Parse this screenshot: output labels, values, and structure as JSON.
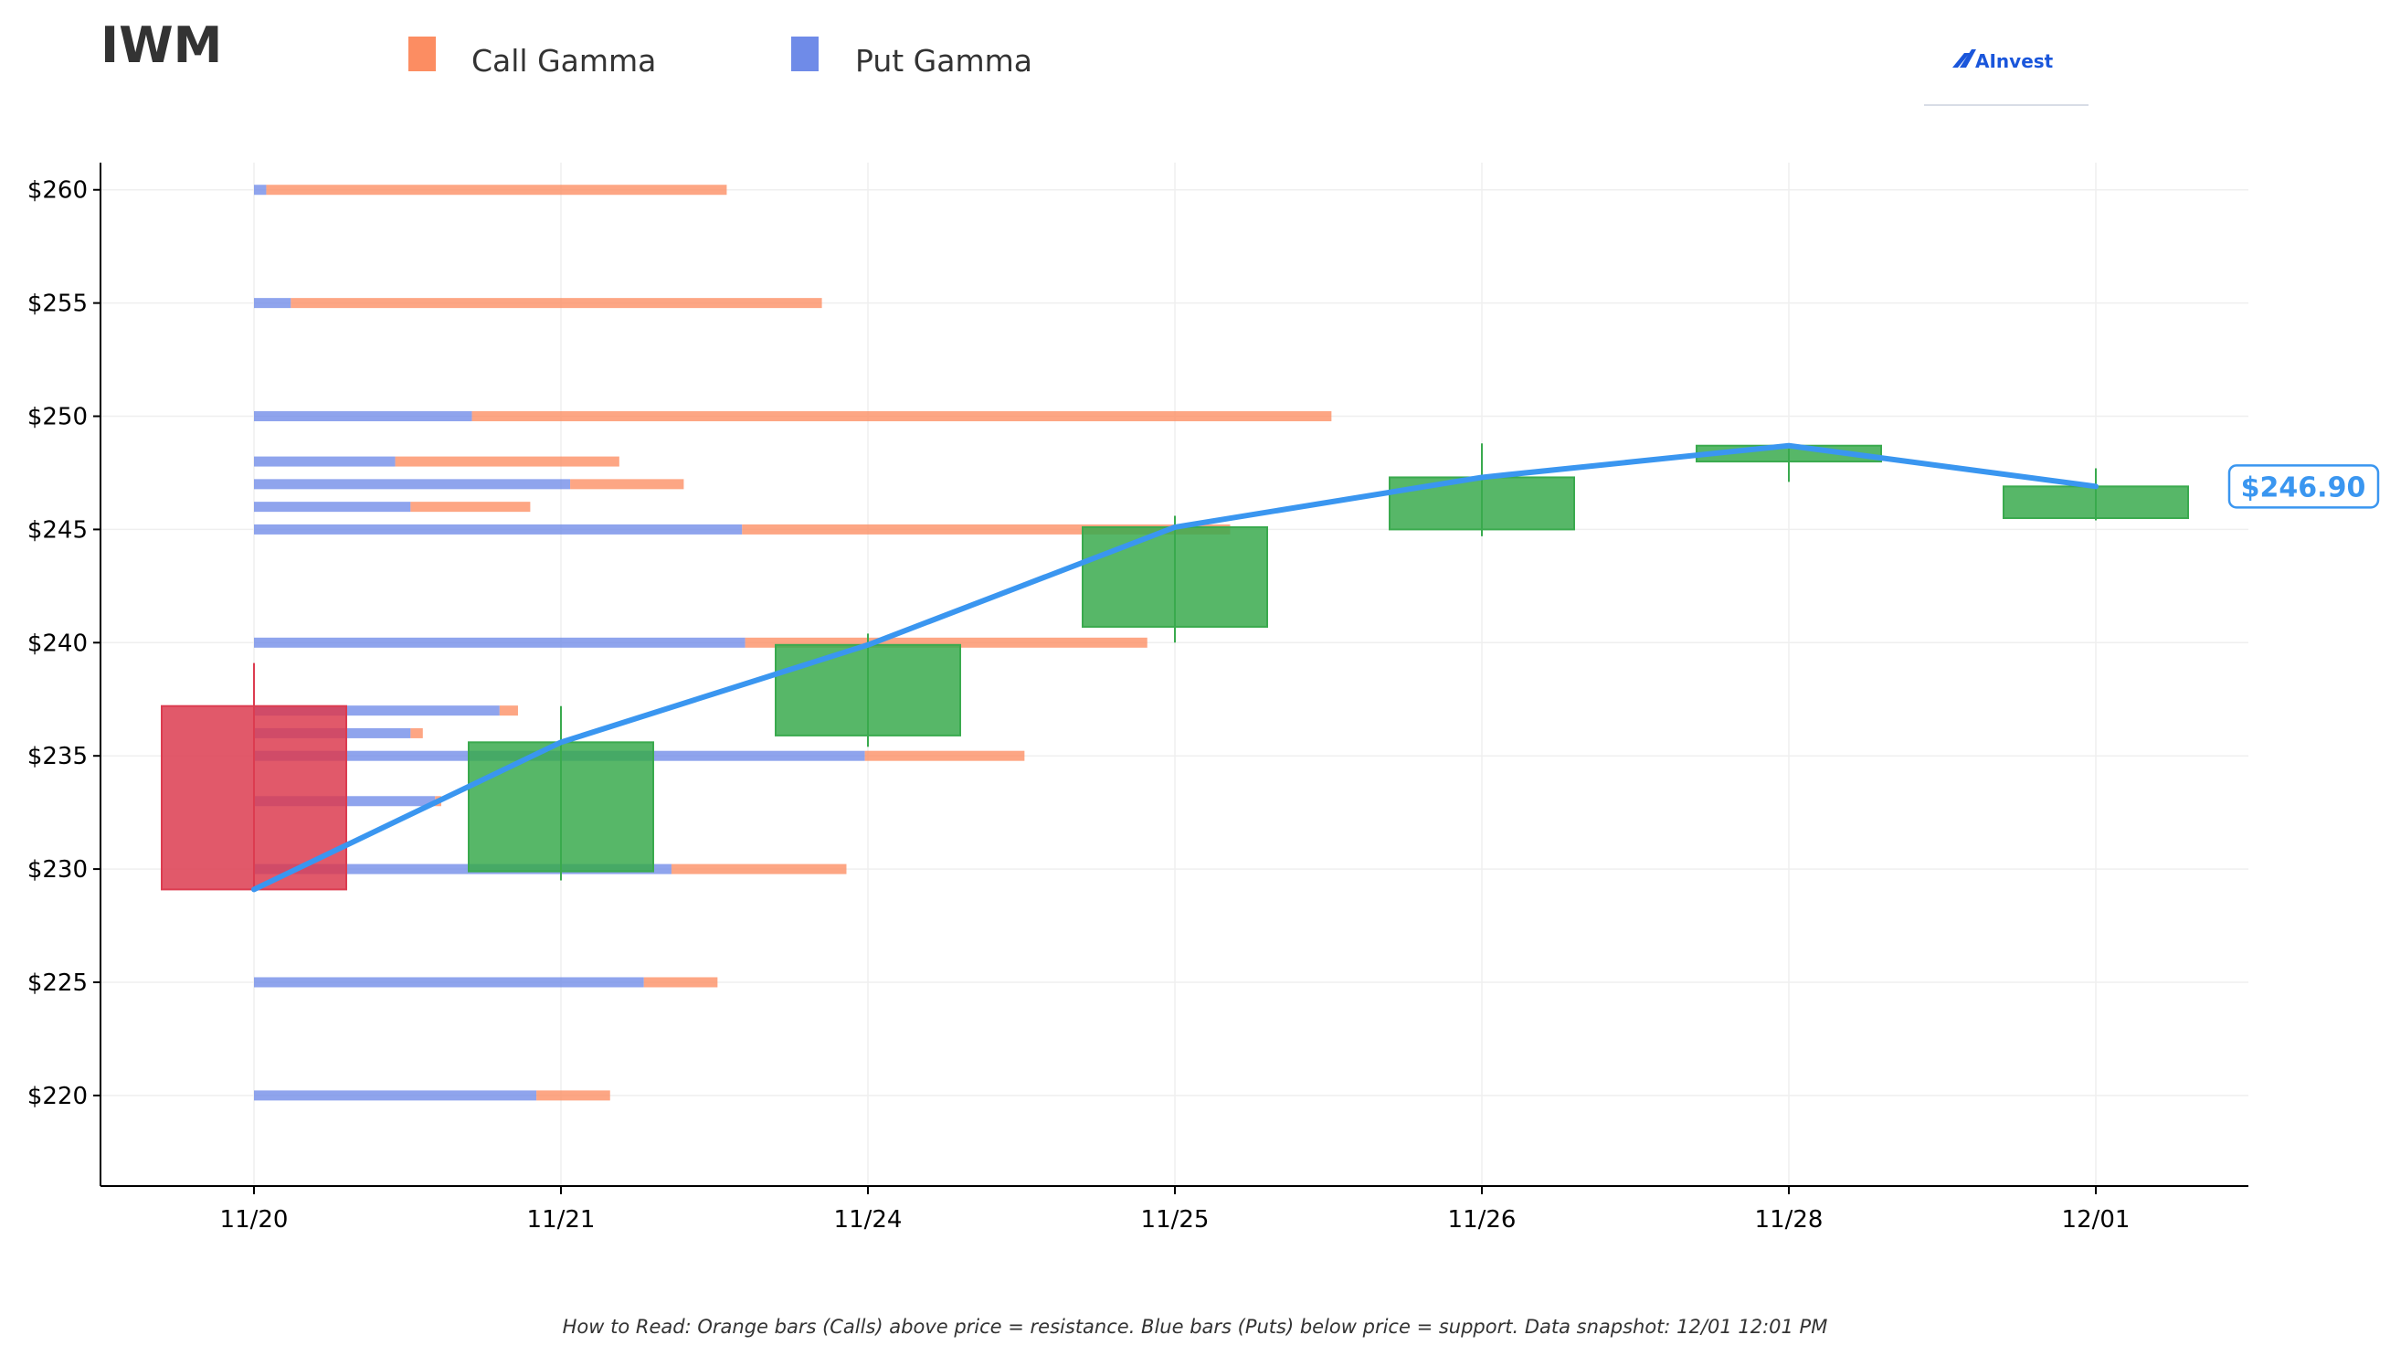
{
  "ticker": "IWM",
  "legend": [
    {
      "label": "Call Gamma",
      "color": "#fc8d62"
    },
    {
      "label": "Put Gamma",
      "color": "#6f8be8"
    }
  ],
  "brand": {
    "name": "AInvest",
    "icon": "ainvest-logo-icon"
  },
  "footnote": "How to Read: Orange bars (Calls) above price = resistance. Blue bars (Puts) below price = support. Data snapshot: 12/01 12:01 PM",
  "chart_data": {
    "type": "candlestick",
    "categories": [
      "11/20",
      "11/21",
      "11/24",
      "11/25",
      "11/26",
      "11/28",
      "12/01"
    ],
    "ylim": [
      216,
      261.2
    ],
    "yticks": [
      220,
      225,
      230,
      235,
      240,
      245,
      250,
      255,
      260
    ],
    "ytick_labels": [
      "$220",
      "$225",
      "$230",
      "$235",
      "$240",
      "$245",
      "$250",
      "$255",
      "$260"
    ],
    "grid": true,
    "legend_position": "top",
    "colors": {
      "up": "#3aaa4e",
      "down": "#dc3c50",
      "call": "#fc8d62",
      "put": "#6f8be8",
      "price_line": "#3a96f0"
    },
    "candles": [
      {
        "date": "11/20",
        "open": 237.2,
        "high": 239.1,
        "low": 229.2,
        "close": 229.1
      },
      {
        "date": "11/21",
        "open": 229.9,
        "high": 237.2,
        "low": 229.5,
        "close": 235.6
      },
      {
        "date": "11/24",
        "open": 235.9,
        "high": 240.4,
        "low": 235.4,
        "close": 239.9
      },
      {
        "date": "11/25",
        "open": 240.7,
        "high": 245.6,
        "low": 240.0,
        "close": 245.1
      },
      {
        "date": "11/26",
        "open": 245.0,
        "high": 248.8,
        "low": 244.7,
        "close": 247.3
      },
      {
        "date": "11/28",
        "open": 248.0,
        "high": 248.8,
        "low": 247.1,
        "close": 248.7
      },
      {
        "date": "12/01",
        "open": 245.5,
        "high": 247.7,
        "low": 245.4,
        "close": 246.9
      }
    ],
    "price_line": [
      229.1,
      235.6,
      239.9,
      245.1,
      247.3,
      248.7,
      246.9
    ],
    "current_price": 246.9,
    "current_price_label": "$246.90",
    "gamma_levels": [
      {
        "strike": 260,
        "put": 0.04,
        "call": 1.5
      },
      {
        "strike": 255,
        "put": 0.12,
        "call": 1.73
      },
      {
        "strike": 250,
        "put": 0.71,
        "call": 2.8
      },
      {
        "strike": 248,
        "put": 0.46,
        "call": 0.73
      },
      {
        "strike": 247,
        "put": 1.03,
        "call": 0.37
      },
      {
        "strike": 246,
        "put": 0.51,
        "call": 0.39
      },
      {
        "strike": 245,
        "put": 1.59,
        "call": 1.59
      },
      {
        "strike": 240,
        "put": 1.6,
        "call": 1.31
      },
      {
        "strike": 237,
        "put": 0.8,
        "call": 0.06
      },
      {
        "strike": 236,
        "put": 0.51,
        "call": 0.04
      },
      {
        "strike": 235,
        "put": 1.99,
        "call": 0.52
      },
      {
        "strike": 233,
        "put": 0.59,
        "call": 0.02
      },
      {
        "strike": 230,
        "put": 1.36,
        "call": 0.57
      },
      {
        "strike": 225,
        "put": 1.27,
        "call": 0.24
      },
      {
        "strike": 220,
        "put": 0.92,
        "call": 0.24
      }
    ],
    "gamma_x_scale_note": "bar lengths in category units measured from the 11/20 position"
  }
}
